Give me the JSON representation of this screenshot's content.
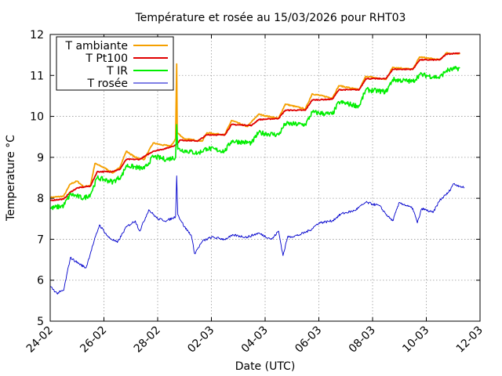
{
  "chart_data": {
    "type": "line",
    "title": "Température et rosée au 15/03/2026 pour RHT03",
    "xlabel": "Date (UTC)",
    "ylabel": "Temperature °C",
    "ylim": [
      5,
      12
    ],
    "yticks": [
      5,
      6,
      7,
      8,
      9,
      10,
      11,
      12
    ],
    "xlim": [
      "2026-02-24",
      "2026-03-12"
    ],
    "xticks": [
      "24-02",
      "26-02",
      "28-02",
      "02-03",
      "04-03",
      "06-03",
      "08-03",
      "10-03",
      "12-03"
    ],
    "grid": true,
    "legend_position": "top-left",
    "series": [
      {
        "name": "T ambiante",
        "color": "#f5a000",
        "points": [
          [
            "2026-02-24T00:00",
            8.02
          ],
          [
            "2026-02-24T12:00",
            8.05
          ],
          [
            "2026-02-24T18:00",
            8.35
          ],
          [
            "2026-02-25T00:00",
            8.42
          ],
          [
            "2026-02-25T06:00",
            8.28
          ],
          [
            "2026-02-25T12:00",
            8.32
          ],
          [
            "2026-02-25T16:00",
            8.85
          ],
          [
            "2026-02-26T00:00",
            8.75
          ],
          [
            "2026-02-26T08:00",
            8.62
          ],
          [
            "2026-02-26T14:00",
            8.75
          ],
          [
            "2026-02-26T20:00",
            9.15
          ],
          [
            "2026-02-27T04:00",
            9.0
          ],
          [
            "2026-02-27T12:00",
            8.95
          ],
          [
            "2026-02-27T20:00",
            9.35
          ],
          [
            "2026-02-28T04:00",
            9.3
          ],
          [
            "2026-02-28T12:00",
            9.28
          ],
          [
            "2026-02-28T16:00",
            9.45
          ],
          [
            "2026-02-28T17:00",
            11.28
          ],
          [
            "2026-02-28T17:30",
            9.6
          ],
          [
            "2026-03-01T00:00",
            9.45
          ],
          [
            "2026-03-01T16:00",
            9.4
          ],
          [
            "2026-03-01T20:00",
            9.6
          ],
          [
            "2026-03-02T12:00",
            9.55
          ],
          [
            "2026-03-02T18:00",
            9.9
          ],
          [
            "2026-03-03T08:00",
            9.75
          ],
          [
            "2026-03-03T18:00",
            10.05
          ],
          [
            "2026-03-04T12:00",
            9.95
          ],
          [
            "2026-03-04T18:00",
            10.3
          ],
          [
            "2026-03-05T12:00",
            10.18
          ],
          [
            "2026-03-05T18:00",
            10.55
          ],
          [
            "2026-03-06T12:00",
            10.45
          ],
          [
            "2026-03-06T18:00",
            10.75
          ],
          [
            "2026-03-07T12:00",
            10.65
          ],
          [
            "2026-03-07T18:00",
            10.98
          ],
          [
            "2026-03-08T12:00",
            10.9
          ],
          [
            "2026-03-08T18:00",
            11.2
          ],
          [
            "2026-03-09T12:00",
            11.15
          ],
          [
            "2026-03-09T18:00",
            11.45
          ],
          [
            "2026-03-10T12:00",
            11.38
          ],
          [
            "2026-03-10T18:00",
            11.55
          ],
          [
            "2026-03-11T06:00",
            11.52
          ]
        ]
      },
      {
        "name": "T Pt100",
        "color": "#e00000",
        "points": [
          [
            "2026-02-24T00:00",
            7.95
          ],
          [
            "2026-02-24T12:00",
            7.98
          ],
          [
            "2026-02-24T18:00",
            8.15
          ],
          [
            "2026-02-25T00:00",
            8.25
          ],
          [
            "2026-02-25T12:00",
            8.3
          ],
          [
            "2026-02-25T18:00",
            8.65
          ],
          [
            "2026-02-26T06:00",
            8.65
          ],
          [
            "2026-02-26T14:00",
            8.7
          ],
          [
            "2026-02-26T20:00",
            8.95
          ],
          [
            "2026-02-27T08:00",
            8.95
          ],
          [
            "2026-02-27T20:00",
            9.15
          ],
          [
            "2026-02-28T08:00",
            9.22
          ],
          [
            "2026-02-28T16:00",
            9.3
          ],
          [
            "2026-02-28T20:00",
            9.42
          ],
          [
            "2026-03-01T12:00",
            9.4
          ],
          [
            "2026-03-01T20:00",
            9.55
          ],
          [
            "2026-03-02T12:00",
            9.55
          ],
          [
            "2026-03-02T18:00",
            9.8
          ],
          [
            "2026-03-03T12:00",
            9.78
          ],
          [
            "2026-03-03T18:00",
            9.92
          ],
          [
            "2026-03-04T12:00",
            9.95
          ],
          [
            "2026-03-04T18:00",
            10.15
          ],
          [
            "2026-03-05T12:00",
            10.15
          ],
          [
            "2026-03-05T18:00",
            10.4
          ],
          [
            "2026-03-06T12:00",
            10.42
          ],
          [
            "2026-03-06T18:00",
            10.65
          ],
          [
            "2026-03-07T12:00",
            10.65
          ],
          [
            "2026-03-07T18:00",
            10.92
          ],
          [
            "2026-03-08T12:00",
            10.92
          ],
          [
            "2026-03-08T18:00",
            11.15
          ],
          [
            "2026-03-09T12:00",
            11.15
          ],
          [
            "2026-03-09T18:00",
            11.38
          ],
          [
            "2026-03-10T12:00",
            11.38
          ],
          [
            "2026-03-10T18:00",
            11.52
          ],
          [
            "2026-03-11T06:00",
            11.55
          ]
        ]
      },
      {
        "name": "T IR",
        "color": "#00ee00",
        "points": [
          [
            "2026-02-24T00:00",
            7.75
          ],
          [
            "2026-02-24T12:00",
            7.82
          ],
          [
            "2026-02-24T18:00",
            8.1
          ],
          [
            "2026-02-25T06:00",
            8.0
          ],
          [
            "2026-02-25T12:00",
            8.1
          ],
          [
            "2026-02-25T18:00",
            8.5
          ],
          [
            "2026-02-26T08:00",
            8.4
          ],
          [
            "2026-02-26T16:00",
            8.55
          ],
          [
            "2026-02-26T20:00",
            8.8
          ],
          [
            "2026-02-27T12:00",
            8.72
          ],
          [
            "2026-02-27T20:00",
            9.02
          ],
          [
            "2026-02-28T08:00",
            8.95
          ],
          [
            "2026-02-28T16:00",
            9.0
          ],
          [
            "2026-02-28T17:00",
            9.8
          ],
          [
            "2026-02-28T18:00",
            9.2
          ],
          [
            "2026-03-01T12:00",
            9.1
          ],
          [
            "2026-03-01T20:00",
            9.22
          ],
          [
            "2026-03-02T12:00",
            9.15
          ],
          [
            "2026-03-02T18:00",
            9.4
          ],
          [
            "2026-03-03T12:00",
            9.35
          ],
          [
            "2026-03-03T18:00",
            9.6
          ],
          [
            "2026-03-04T12:00",
            9.55
          ],
          [
            "2026-03-04T18:00",
            9.82
          ],
          [
            "2026-03-05T12:00",
            9.8
          ],
          [
            "2026-03-05T18:00",
            10.1
          ],
          [
            "2026-03-06T12:00",
            10.05
          ],
          [
            "2026-03-06T18:00",
            10.35
          ],
          [
            "2026-03-07T12:00",
            10.25
          ],
          [
            "2026-03-07T18:00",
            10.65
          ],
          [
            "2026-03-08T12:00",
            10.6
          ],
          [
            "2026-03-08T18:00",
            10.9
          ],
          [
            "2026-03-09T12:00",
            10.85
          ],
          [
            "2026-03-09T18:00",
            11.02
          ],
          [
            "2026-03-10T12:00",
            10.95
          ],
          [
            "2026-03-10T18:00",
            11.12
          ],
          [
            "2026-03-11T06:00",
            11.18
          ]
        ]
      },
      {
        "name": "T rosée",
        "color": "#0000cc",
        "points": [
          [
            "2026-02-24T00:00",
            5.85
          ],
          [
            "2026-02-24T06:00",
            5.68
          ],
          [
            "2026-02-24T12:00",
            5.75
          ],
          [
            "2026-02-24T18:00",
            6.55
          ],
          [
            "2026-02-25T02:00",
            6.4
          ],
          [
            "2026-02-25T08:00",
            6.3
          ],
          [
            "2026-02-25T14:00",
            6.85
          ],
          [
            "2026-02-25T20:00",
            7.35
          ],
          [
            "2026-02-26T04:00",
            7.05
          ],
          [
            "2026-02-26T12:00",
            6.92
          ],
          [
            "2026-02-26T20:00",
            7.3
          ],
          [
            "2026-02-27T04:00",
            7.45
          ],
          [
            "2026-02-27T08:00",
            7.2
          ],
          [
            "2026-02-27T16:00",
            7.72
          ],
          [
            "2026-02-28T00:00",
            7.5
          ],
          [
            "2026-02-28T08:00",
            7.45
          ],
          [
            "2026-02-28T16:00",
            7.55
          ],
          [
            "2026-02-28T17:00",
            8.55
          ],
          [
            "2026-02-28T18:00",
            7.6
          ],
          [
            "2026-03-01T00:00",
            7.3
          ],
          [
            "2026-03-01T06:00",
            7.1
          ],
          [
            "2026-03-01T09:00",
            6.65
          ],
          [
            "2026-03-01T16:00",
            6.95
          ],
          [
            "2026-03-02T00:00",
            7.05
          ],
          [
            "2026-03-02T12:00",
            7.0
          ],
          [
            "2026-03-02T20:00",
            7.1
          ],
          [
            "2026-03-03T08:00",
            7.05
          ],
          [
            "2026-03-03T18:00",
            7.15
          ],
          [
            "2026-03-04T06:00",
            7.0
          ],
          [
            "2026-03-04T12:00",
            7.2
          ],
          [
            "2026-03-04T16:00",
            6.6
          ],
          [
            "2026-03-04T20:00",
            7.05
          ],
          [
            "2026-03-05T06:00",
            7.1
          ],
          [
            "2026-03-05T16:00",
            7.22
          ],
          [
            "2026-03-06T00:00",
            7.4
          ],
          [
            "2026-03-06T12:00",
            7.45
          ],
          [
            "2026-03-06T20:00",
            7.62
          ],
          [
            "2026-03-07T08:00",
            7.7
          ],
          [
            "2026-03-07T18:00",
            7.9
          ],
          [
            "2026-03-08T06:00",
            7.82
          ],
          [
            "2026-03-08T14:00",
            7.55
          ],
          [
            "2026-03-08T18:00",
            7.45
          ],
          [
            "2026-03-09T00:00",
            7.9
          ],
          [
            "2026-03-09T12:00",
            7.75
          ],
          [
            "2026-03-09T16:00",
            7.4
          ],
          [
            "2026-03-09T20:00",
            7.75
          ],
          [
            "2026-03-10T06:00",
            7.65
          ],
          [
            "2026-03-10T12:00",
            7.95
          ],
          [
            "2026-03-10T20:00",
            8.15
          ],
          [
            "2026-03-11T00:00",
            8.35
          ],
          [
            "2026-03-11T06:00",
            8.3
          ],
          [
            "2026-03-11T10:00",
            8.25
          ]
        ]
      }
    ]
  }
}
